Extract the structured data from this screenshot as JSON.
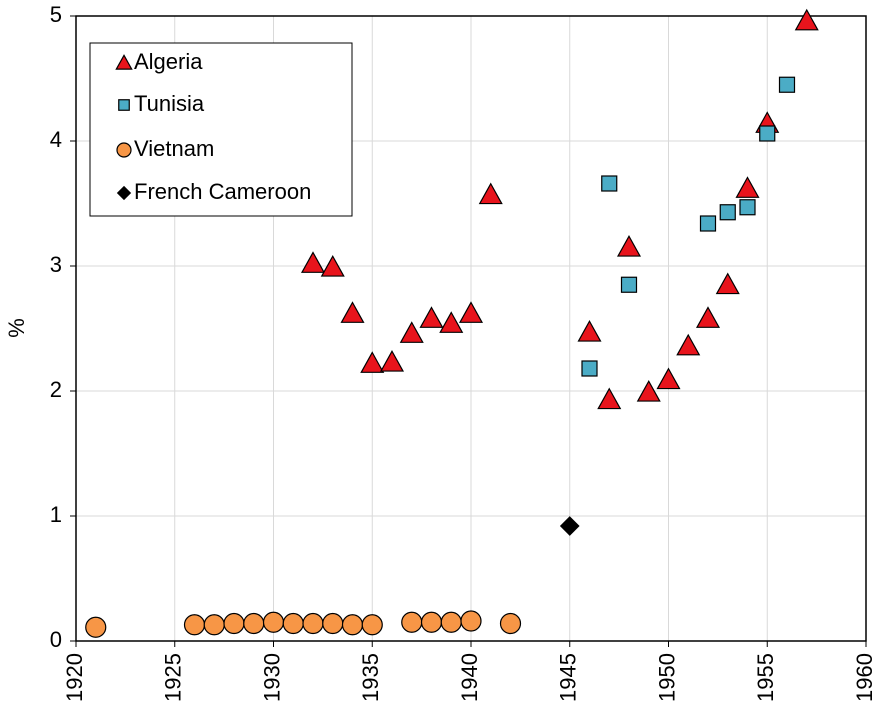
{
  "chart_data": {
    "type": "scatter",
    "ylabel": "%",
    "xlim": [
      1920,
      1960
    ],
    "xticks": [
      1920,
      1925,
      1930,
      1935,
      1940,
      1945,
      1950,
      1955,
      1960
    ],
    "ylim": [
      0,
      5
    ],
    "yticks": [
      0,
      1,
      2,
      3,
      4,
      5
    ],
    "grid": true,
    "legend": "upper left",
    "series": [
      {
        "name": "Algeria",
        "color": "#e8141c",
        "marker": "triangle",
        "x": [
          1932,
          1933,
          1934,
          1935,
          1936,
          1937,
          1938,
          1939,
          1940,
          1941,
          1946,
          1947,
          1948,
          1949,
          1950,
          1951,
          1952,
          1953,
          1954,
          1955,
          1957
        ],
        "values": [
          3.02,
          2.99,
          2.62,
          2.22,
          2.23,
          2.46,
          2.58,
          2.54,
          2.62,
          3.57,
          2.47,
          1.93,
          3.15,
          1.99,
          2.09,
          2.36,
          2.58,
          2.85,
          3.62,
          4.14,
          4.96
        ]
      },
      {
        "name": "Tunisia",
        "color": "#4bacc6",
        "marker": "square",
        "x": [
          1946,
          1947,
          1948,
          1952,
          1953,
          1954,
          1955,
          1956
        ],
        "values": [
          2.18,
          3.66,
          2.85,
          3.34,
          3.43,
          3.47,
          4.06,
          4.45
        ]
      },
      {
        "name": "Vietnam",
        "color": "#f79646",
        "marker": "circle",
        "x": [
          1921,
          1926,
          1927,
          1928,
          1929,
          1930,
          1931,
          1932,
          1933,
          1934,
          1935,
          1937,
          1938,
          1939,
          1940,
          1942
        ],
        "values": [
          0.11,
          0.13,
          0.13,
          0.14,
          0.14,
          0.15,
          0.14,
          0.14,
          0.14,
          0.13,
          0.13,
          0.15,
          0.15,
          0.15,
          0.16,
          0.14
        ]
      },
      {
        "name": "French Cameroon",
        "color": "#000000",
        "marker": "diamond",
        "x": [
          1945
        ],
        "values": [
          0.92
        ]
      }
    ]
  }
}
